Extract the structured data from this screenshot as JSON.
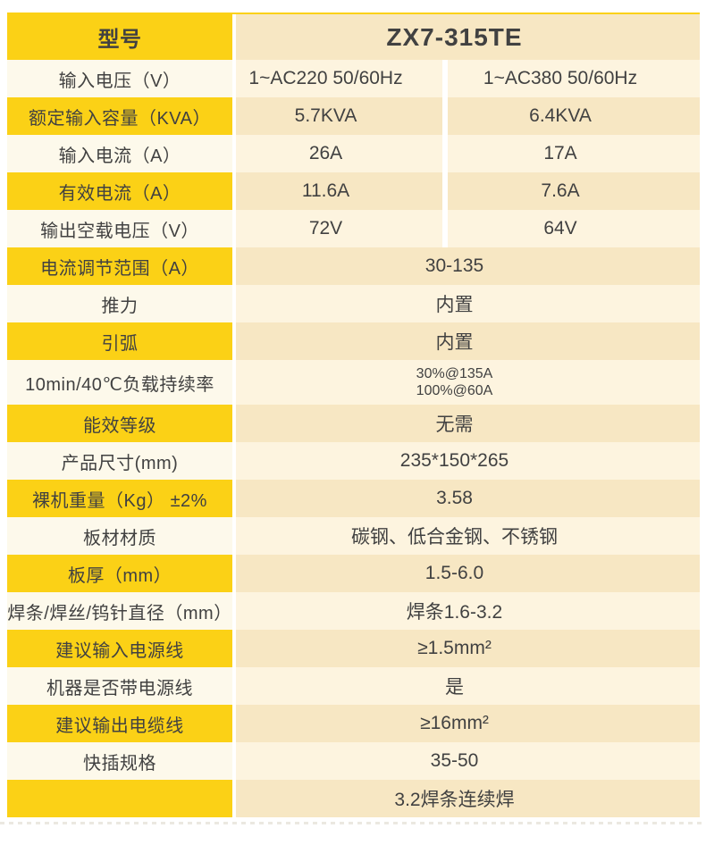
{
  "colors": {
    "accent_yellow": "#FBD116",
    "value_cream_dark": "#F7E7C3",
    "value_cream_light": "#FDF4DF",
    "label_light": "#FDF9EB",
    "text": "#414141"
  },
  "table": {
    "rows": [
      {
        "kind": "header",
        "tone": "yellow",
        "label": "型号",
        "values": [
          "ZX7-315TE"
        ]
      },
      {
        "kind": "split",
        "tone": "light",
        "label": "输入电压（V）",
        "values": [
          "1~AC220 50/60Hz",
          "1~AC380 50/60Hz"
        ]
      },
      {
        "kind": "split",
        "tone": "yellow",
        "label": "额定输入容量（KVA）",
        "values": [
          "5.7KVA",
          "6.4KVA"
        ]
      },
      {
        "kind": "split",
        "tone": "light",
        "label": "输入电流（A）",
        "values": [
          "26A",
          "17A"
        ]
      },
      {
        "kind": "split",
        "tone": "yellow",
        "label": "有效电流（A）",
        "values": [
          "11.6A",
          "7.6A"
        ]
      },
      {
        "kind": "split",
        "tone": "light",
        "label": "输出空载电压（V）",
        "values": [
          "72V",
          "64V"
        ]
      },
      {
        "kind": "merged",
        "tone": "yellow",
        "label": "电流调节范围（A）",
        "values": [
          "30-135"
        ]
      },
      {
        "kind": "merged",
        "tone": "light",
        "label": "推力",
        "values": [
          "内置"
        ]
      },
      {
        "kind": "merged",
        "tone": "yellow",
        "label": "引弧",
        "values": [
          "内置"
        ]
      },
      {
        "kind": "duty",
        "tone": "light",
        "label": "10min/40℃负载持续率",
        "values": [
          "30%@135A",
          "100%@60A"
        ]
      },
      {
        "kind": "merged",
        "tone": "yellow",
        "label": "能效等级",
        "values": [
          "无需"
        ]
      },
      {
        "kind": "merged",
        "tone": "light",
        "label": "产品尺寸(mm)",
        "values": [
          "235*150*265"
        ]
      },
      {
        "kind": "merged",
        "tone": "yellow",
        "label": "裸机重量（Kg） ±2%",
        "values": [
          "3.58"
        ]
      },
      {
        "kind": "merged",
        "tone": "light",
        "label": "板材材质",
        "values": [
          "碳钢、低合金钢、不锈钢"
        ]
      },
      {
        "kind": "merged",
        "tone": "yellow",
        "label": "板厚（mm）",
        "values": [
          "1.5-6.0"
        ]
      },
      {
        "kind": "merged",
        "tone": "light",
        "label": "焊条/焊丝/钨针直径（mm）",
        "values": [
          "焊条1.6-3.2"
        ]
      },
      {
        "kind": "merged",
        "tone": "yellow",
        "label": "建议输入电源线",
        "values": [
          "≥1.5mm²"
        ]
      },
      {
        "kind": "merged",
        "tone": "light",
        "label": "机器是否带电源线",
        "values": [
          "是"
        ]
      },
      {
        "kind": "merged",
        "tone": "yellow",
        "label": "建议输出电缆线",
        "values": [
          "≥16mm²"
        ]
      },
      {
        "kind": "merged",
        "tone": "light",
        "label": "快插规格",
        "values": [
          "35-50"
        ]
      },
      {
        "kind": "merged",
        "tone": "yellow",
        "label": "",
        "values": [
          "3.2焊条连续焊"
        ]
      }
    ]
  }
}
